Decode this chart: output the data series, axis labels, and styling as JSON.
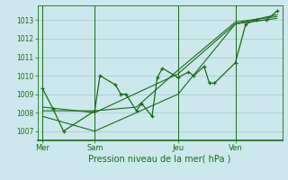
{
  "bg_color": "#cce8ec",
  "grid_color": "#a8cdd4",
  "line_color": "#1a6b1a",
  "xlabel": "Pression niveau de la mer( hPa )",
  "ylim": [
    1006.5,
    1013.8
  ],
  "yticks": [
    1007,
    1008,
    1009,
    1010,
    1011,
    1012,
    1013
  ],
  "day_labels": [
    "Mer",
    "Sam",
    "Jeu",
    "Ven"
  ],
  "day_positions": [
    0,
    10,
    26,
    37
  ],
  "series1_x": [
    0,
    2,
    4,
    10,
    11,
    14,
    15,
    16,
    18,
    19,
    21,
    22,
    23,
    26,
    28,
    29,
    31,
    32,
    33,
    37,
    39,
    41,
    43,
    45
  ],
  "series1_y": [
    1009.3,
    1008.2,
    1007.0,
    1008.1,
    1010.0,
    1009.5,
    1009.0,
    1009.0,
    1008.1,
    1008.5,
    1007.8,
    1009.9,
    1010.4,
    1009.9,
    1010.2,
    1010.0,
    1010.5,
    1009.6,
    1009.6,
    1010.7,
    1012.8,
    1013.0,
    1013.0,
    1013.5
  ],
  "series2_x": [
    0,
    10,
    18,
    26,
    37,
    45
  ],
  "series2_y": [
    1007.8,
    1007.0,
    1008.0,
    1009.0,
    1012.8,
    1013.3
  ],
  "series3_x": [
    0,
    10,
    18,
    26,
    37,
    45
  ],
  "series3_y": [
    1008.1,
    1008.1,
    1008.3,
    1010.3,
    1012.9,
    1013.2
  ],
  "series4_x": [
    0,
    10,
    26,
    37,
    45
  ],
  "series4_y": [
    1008.3,
    1008.0,
    1010.1,
    1012.8,
    1013.1
  ]
}
